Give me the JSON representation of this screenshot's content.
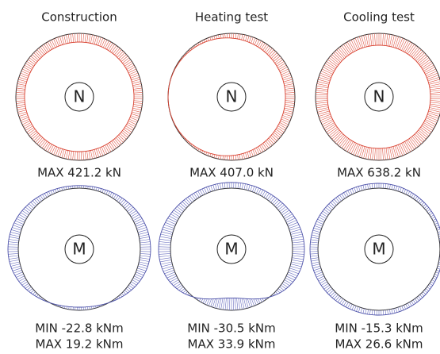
{
  "panels": [
    {
      "title": "Construction",
      "n_label": "N",
      "n_caption": "MAX 421.2 kN",
      "m_label": "M",
      "m_min": "MIN -22.8 kNm",
      "m_max": "MAX 19.2 kNm"
    },
    {
      "title": "Heating test",
      "n_label": "N",
      "n_caption": "MAX 407.0 kN",
      "m_label": "M",
      "m_min": "MIN -30.5 kNm",
      "m_max": "MAX 33.9 kNm"
    },
    {
      "title": "Cooling test",
      "n_label": "N",
      "n_caption": "MAX 638.2 kN",
      "m_label": "M",
      "m_min": "MIN -15.3 kNm",
      "m_max": "MAX 26.6 kNm"
    }
  ]
}
